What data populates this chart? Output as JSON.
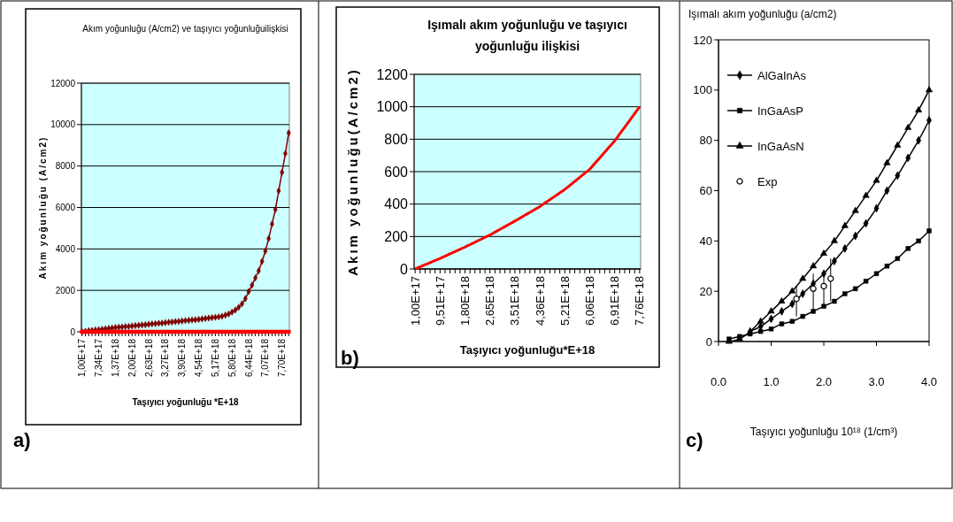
{
  "chart_data": [
    {
      "type": "line",
      "title": "Akım yoğunluğu (A/cm2) ve taşıyıcı yoğunluğuilişkisi",
      "xlabel": "Taşıyıcı yoğunluğu *E+18",
      "ylabel": "Akım yoğunluğu  (A/cm2)",
      "annotations": [
        "a)"
      ],
      "categories": [
        "1,00E+17",
        null,
        null,
        null,
        null,
        "7,34E+17",
        null,
        null,
        null,
        null,
        "1,37E+18",
        null,
        null,
        null,
        null,
        "2,00E+18",
        null,
        null,
        null,
        null,
        "2,63E+18",
        null,
        null,
        null,
        null,
        "3,27E+18",
        null,
        null,
        null,
        null,
        "3,90E+18",
        null,
        null,
        null,
        null,
        "4,54E+18",
        null,
        null,
        null,
        null,
        "5,17E+18",
        null,
        null,
        null,
        null,
        "5,80E+18",
        null,
        null,
        null,
        null,
        "6,44E+18",
        null,
        null,
        null,
        null,
        "7,07E+18",
        null,
        null,
        null,
        null,
        "7,70E+18",
        null,
        null
      ],
      "series": [
        {
          "color": "#800000",
          "marker": "diamond",
          "values": [
            0,
            20,
            50,
            60,
            90,
            100,
            120,
            140,
            160,
            180,
            200,
            220,
            230,
            250,
            260,
            280,
            300,
            310,
            330,
            340,
            360,
            380,
            390,
            410,
            420,
            440,
            460,
            470,
            490,
            500,
            520,
            540,
            550,
            570,
            580,
            600,
            620,
            640,
            660,
            680,
            700,
            720,
            750,
            800,
            860,
            950,
            1050,
            1180,
            1350,
            1600,
            1940,
            2250,
            2600,
            2950,
            3400,
            3900,
            4500,
            5200,
            5900,
            6800,
            7700,
            8600,
            9600
          ]
        },
        {
          "color": "#ff0000",
          "marker": "square",
          "values": [
            0,
            0,
            0,
            0,
            0,
            0,
            0,
            0,
            0,
            0,
            0,
            0,
            0,
            0,
            0,
            0,
            0,
            0,
            0,
            0,
            0,
            0,
            0,
            0,
            0,
            0,
            0,
            0,
            0,
            0,
            0,
            0,
            0,
            0,
            0,
            0,
            0,
            0,
            0,
            0,
            0,
            0,
            0,
            0,
            0,
            0,
            0,
            0,
            0,
            0,
            0,
            0,
            0,
            0,
            0,
            0,
            0,
            0,
            0,
            0,
            0,
            0,
            0
          ]
        }
      ],
      "ylim": [
        0,
        12000
      ],
      "yticks": [
        0,
        2000,
        4000,
        6000,
        8000,
        10000,
        12000
      ],
      "grid": "y"
    },
    {
      "type": "line",
      "title": "Işımalı akım yoğunluğu  ve taşıyıcı yoğunluğu ilişkisi",
      "xlabel": "Taşıyıcı yoğunluğu*E+18",
      "ylabel": "Akım yoğunluğu(A/cm2)",
      "annotations": [
        "b)"
      ],
      "categories": [
        "1,00E+17",
        null,
        null,
        null,
        null,
        "9,51E+17",
        null,
        null,
        null,
        null,
        "1,80E+18",
        null,
        null,
        null,
        null,
        "2,65E+18",
        null,
        null,
        null,
        null,
        "3,51E+18",
        null,
        null,
        null,
        null,
        "4,36E+18",
        null,
        null,
        null,
        null,
        "5,21E+18",
        null,
        null,
        null,
        null,
        "6,06E+18",
        null,
        null,
        null,
        null,
        "6,91E+18",
        null,
        null,
        null,
        null,
        "7,76E+18"
      ],
      "series": [
        {
          "color": "#ff0000",
          "values": [
            0,
            13,
            26,
            39,
            52,
            65,
            79,
            93,
            107,
            121,
            135,
            150,
            165,
            180,
            195,
            210,
            227,
            244,
            261,
            278,
            295,
            313,
            331,
            349,
            367,
            385,
            406,
            427,
            448,
            469,
            490,
            515,
            540,
            565,
            590,
            615,
            650,
            685,
            720,
            755,
            790,
            832,
            874,
            916,
            958,
            1000
          ]
        }
      ],
      "ylim": [
        0,
        1200
      ],
      "yticks": [
        0,
        200,
        400,
        600,
        800,
        1000,
        1200
      ],
      "grid": "y"
    },
    {
      "type": "line",
      "xlabel": "Taşıyıcı yoğunluğu    10¹⁸ (1/cm³)",
      "ylabel": "Işımalı akım yoğunluğu (a/cm2)",
      "annotations": [
        "c)"
      ],
      "legend": "top left",
      "x": [
        0.2,
        0.4,
        0.6,
        0.8,
        1.0,
        1.2,
        1.4,
        1.6,
        1.8,
        2.0,
        2.2,
        2.4,
        2.6,
        2.8,
        3.0,
        3.2,
        3.4,
        3.6,
        3.8,
        4.0
      ],
      "series": [
        {
          "name": "AlGaInAs",
          "color": "#000000",
          "marker": "diamond",
          "values": [
            null,
            null,
            4,
            6,
            9,
            12,
            15,
            19,
            23,
            27,
            32,
            37,
            42,
            47,
            53,
            60,
            66,
            73,
            80,
            88
          ]
        },
        {
          "name": "InGaAsP",
          "color": "#000000",
          "marker": "square",
          "values": [
            1,
            2,
            3,
            4,
            5,
            7,
            8,
            10,
            12,
            14,
            16,
            19,
            21,
            24,
            27,
            30,
            33,
            37,
            40,
            44
          ]
        },
        {
          "name": "InGaAsN",
          "color": "#000000",
          "marker": "triangle",
          "values": [
            0,
            1,
            null,
            8,
            12,
            16,
            20,
            25,
            30,
            35,
            40,
            46,
            52,
            58,
            64,
            71,
            78,
            85,
            92,
            100
          ]
        },
        {
          "name": "Exp",
          "type": "scatter",
          "color": "#000000",
          "marker": "circle",
          "x": [
            1.48,
            1.8,
            2.0,
            2.13
          ],
          "values": [
            17,
            21,
            22,
            25
          ],
          "errors": [
            [
              10,
              22
            ],
            [
              12,
              27
            ],
            [
              14,
              28
            ],
            [
              16,
              33
            ]
          ]
        }
      ],
      "xlim": [
        0,
        4
      ],
      "xticks": [
        {
          "value": 0,
          "label": "0.0"
        },
        {
          "value": 1,
          "label": "1.0"
        },
        {
          "value": 2,
          "label": "2.0"
        },
        {
          "value": 3,
          "label": "3.0"
        },
        {
          "value": 4,
          "label": "4.0"
        }
      ],
      "ylim": [
        0,
        120
      ],
      "yticks": [
        0,
        20,
        40,
        60,
        80,
        100,
        120
      ]
    }
  ]
}
